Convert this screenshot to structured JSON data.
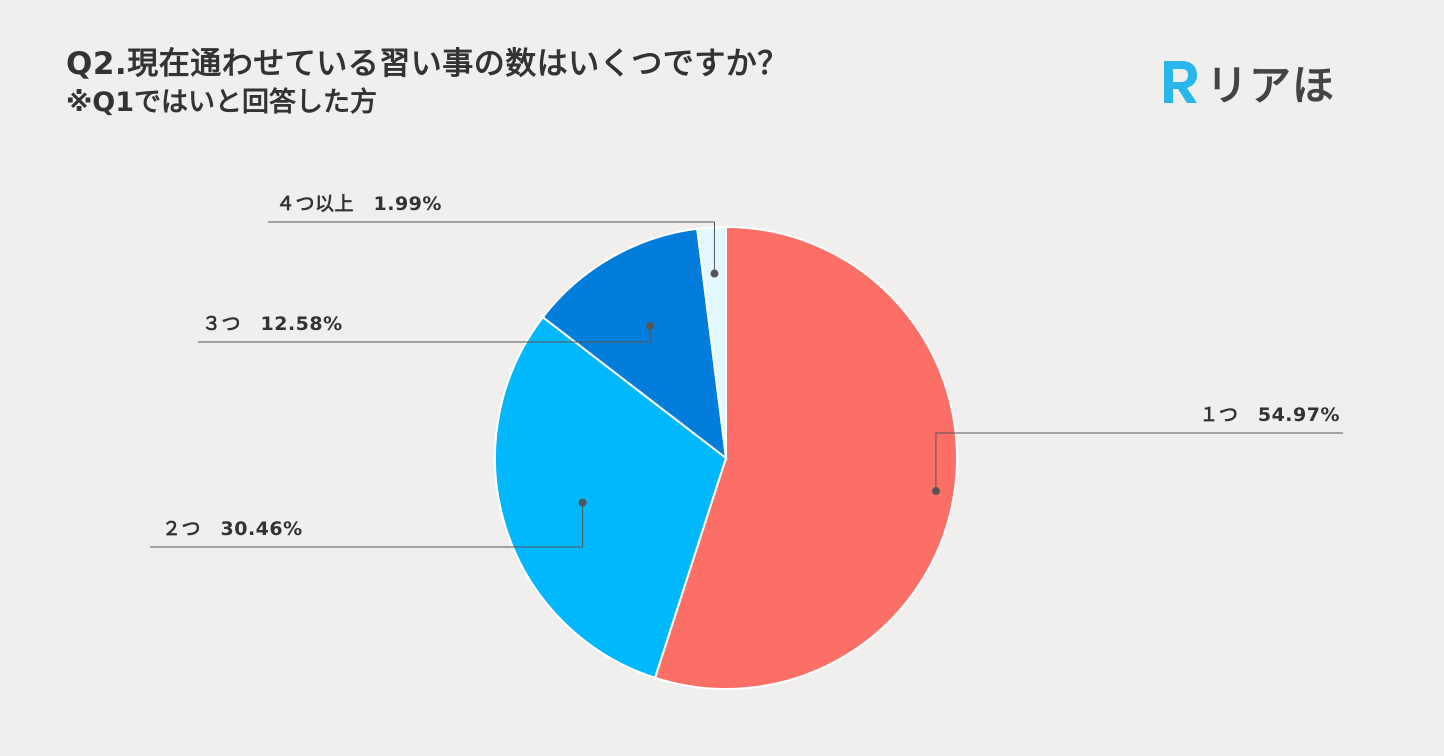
{
  "header": {
    "title": "Q2.現在通わせている習い事の数はいくつですか？",
    "subtitle": "※Q1ではいと回答した方"
  },
  "logo": {
    "text": "リアほ",
    "icon": "r-logo-icon",
    "color": "#29b6ea"
  },
  "chart_data": {
    "type": "pie",
    "title": "Q2.現在通わせている習い事の数はいくつですか？",
    "subtitle": "※Q1ではいと回答した方",
    "slices": [
      {
        "label": "１つ",
        "value": 54.97,
        "display": "54.97%",
        "color": "#fc6f66"
      },
      {
        "label": "２つ",
        "value": 30.46,
        "display": "30.46%",
        "color": "#02b8fc"
      },
      {
        "label": "３つ",
        "value": 12.58,
        "display": "12.58%",
        "color": "#027ddb"
      },
      {
        "label": "４つ以上",
        "value": 1.99,
        "display": "1.99%",
        "color": "#e3f7ff"
      }
    ],
    "start_angle": "12 o'clock",
    "direction": "clockwise",
    "legend": "none",
    "grid": false
  }
}
